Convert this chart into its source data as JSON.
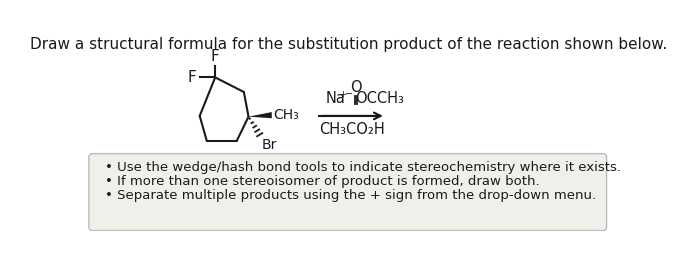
{
  "title": "Draw a structural formula for the substitution product of the reaction shown below.",
  "title_fontsize": 11,
  "title_color": "#1a1a1a",
  "bg_color": "#ffffff",
  "box_bg_color": "#f0f0eb",
  "box_border_color": "#bbbbbb",
  "bullet_points": [
    "Use the wedge/hash bond tools to indicate stereochemistry where it exists.",
    "If more than one stereoisomer of product is formed, draw both.",
    "Separate multiple products using the + sign from the drop-down menu."
  ],
  "bullet_fontsize": 9.5,
  "bullet_color": "#1a1a1a",
  "ring_color": "#1a1a1a",
  "text_color": "#1a1a1a"
}
